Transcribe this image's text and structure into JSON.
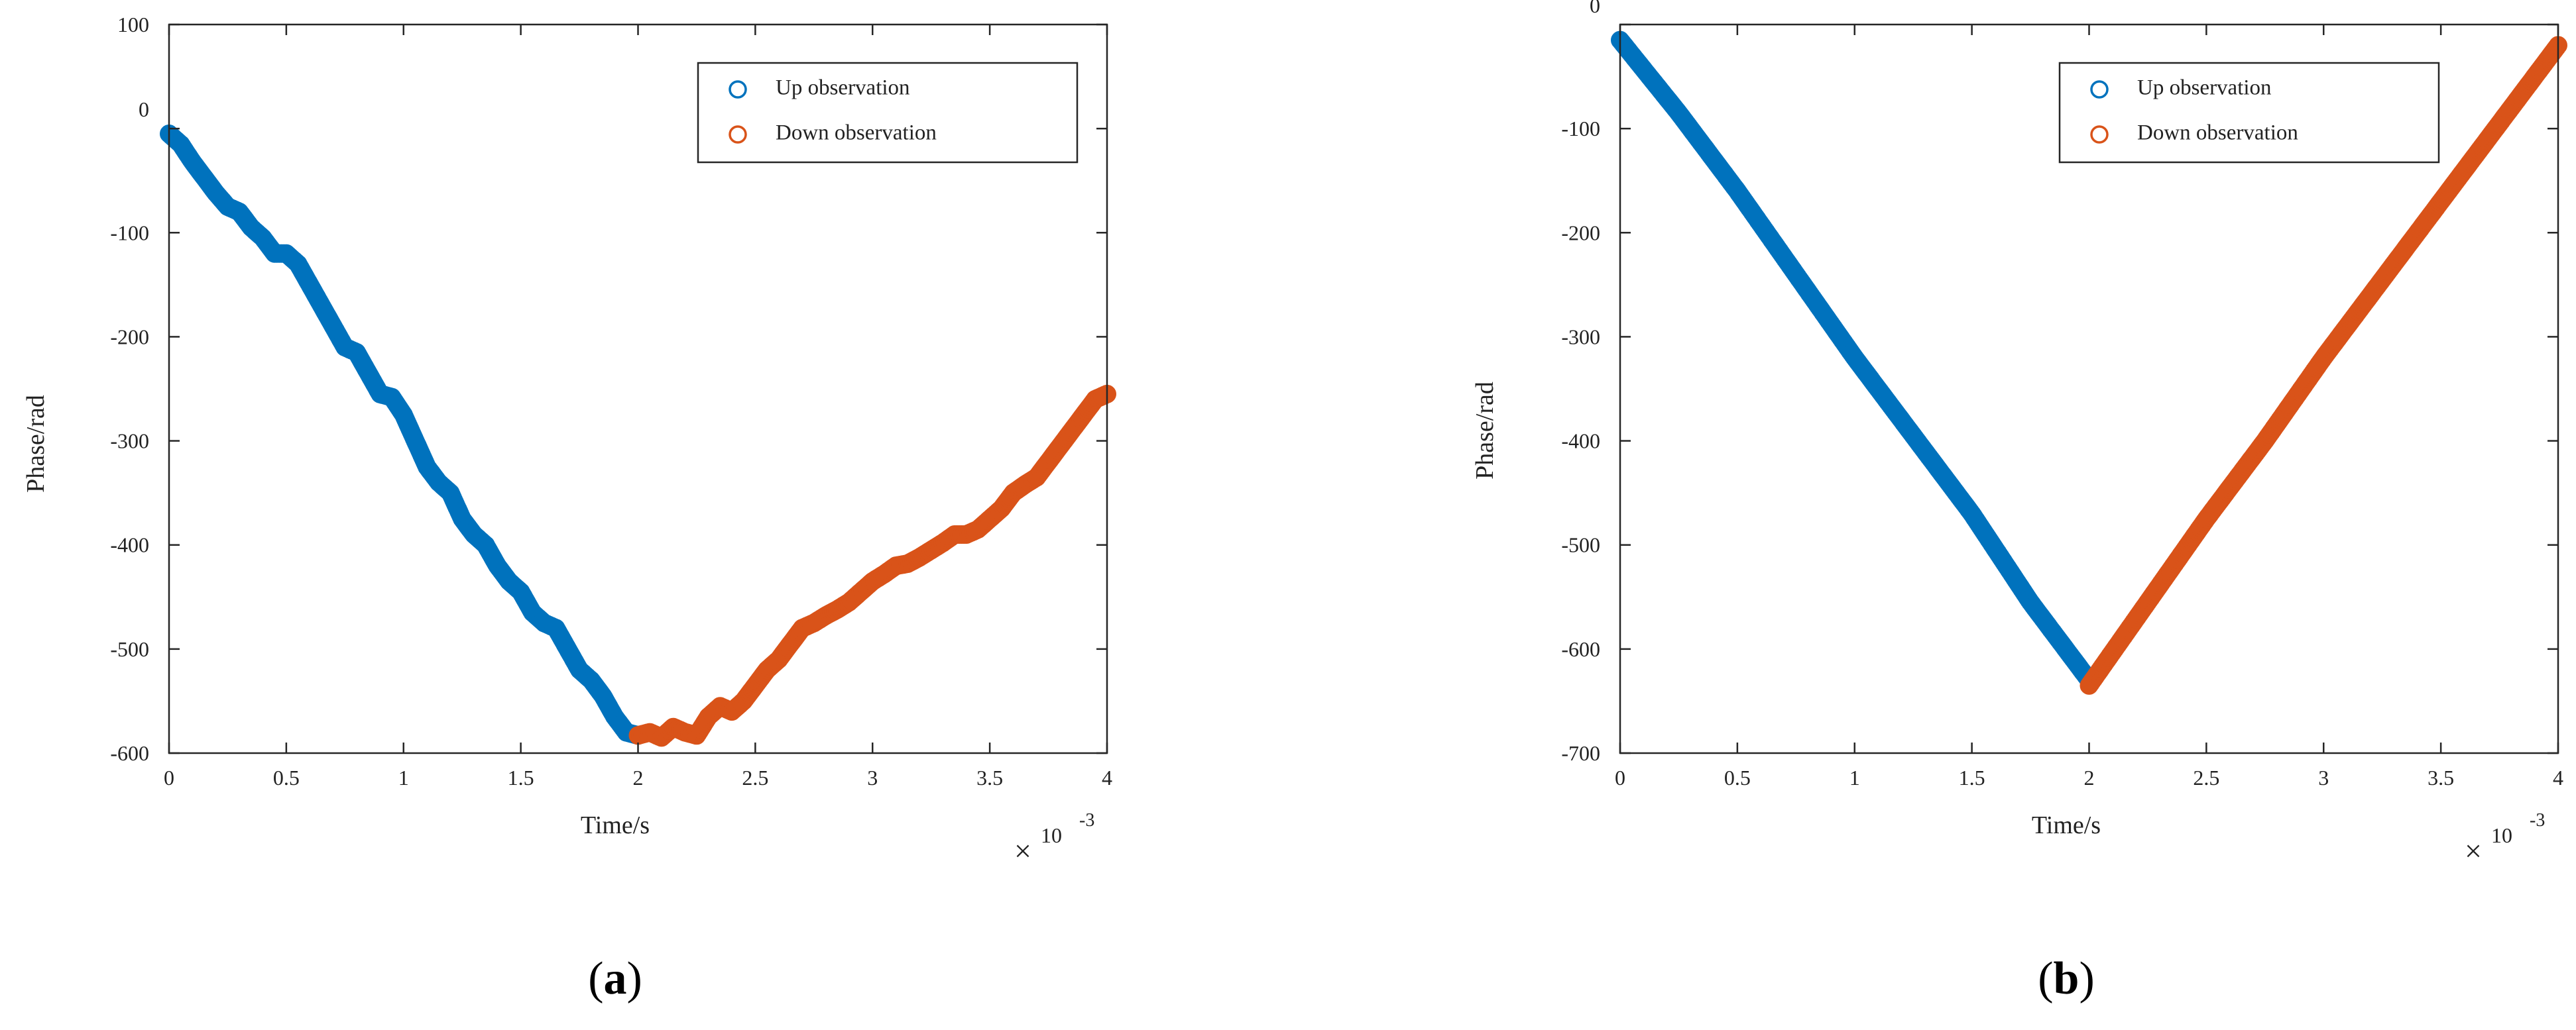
{
  "colors": {
    "up": "#0072BD",
    "down": "#D95319",
    "axis": "#262626"
  },
  "panels": [
    {
      "label_open": "(",
      "label_letter": "a",
      "label_close": ")",
      "xlabel": "Time/s",
      "ylabel": "Phase/rad",
      "x_multiplier": {
        "times": "×",
        "base": "10",
        "exponent": "-3"
      },
      "legend": [
        "Up observation",
        "Down observation"
      ]
    },
    {
      "label_open": "(",
      "label_letter": "b",
      "label_close": ")",
      "xlabel": "Time/s",
      "ylabel": "Phase/rad",
      "x_multiplier": {
        "times": "×",
        "base": "10",
        "exponent": "-3"
      },
      "legend": [
        "Up observation",
        "Down observation"
      ]
    }
  ],
  "chart_data": [
    {
      "type": "scatter",
      "title": "",
      "xlabel": "Time/s",
      "ylabel": "Phase/rad",
      "x_scale_note": "×10^-3",
      "xlim": [
        0,
        4
      ],
      "ylim": [
        -600,
        100
      ],
      "xticks": [
        "0",
        "0.5",
        "1",
        "1.5",
        "2",
        "2.5",
        "3",
        "3.5",
        "4"
      ],
      "yticks": [
        "100",
        "0",
        "-100",
        "-200",
        "-300",
        "-400",
        "-500",
        "-600"
      ],
      "grid": false,
      "legend_position": "top-right",
      "series": [
        {
          "name": "Up observation",
          "color": "#0072BD",
          "points": [
            [
              0,
              -5
            ],
            [
              0.05,
              -15
            ],
            [
              0.1,
              -32
            ],
            [
              0.15,
              -47
            ],
            [
              0.2,
              -62
            ],
            [
              0.25,
              -75
            ],
            [
              0.3,
              -80
            ],
            [
              0.35,
              -95
            ],
            [
              0.4,
              -105
            ],
            [
              0.45,
              -120
            ],
            [
              0.5,
              -120
            ],
            [
              0.55,
              -130
            ],
            [
              0.6,
              -150
            ],
            [
              0.65,
              -170
            ],
            [
              0.7,
              -190
            ],
            [
              0.75,
              -210
            ],
            [
              0.8,
              -215
            ],
            [
              0.85,
              -235
            ],
            [
              0.9,
              -255
            ],
            [
              0.95,
              -258
            ],
            [
              1.0,
              -275
            ],
            [
              1.05,
              -300
            ],
            [
              1.1,
              -325
            ],
            [
              1.15,
              -340
            ],
            [
              1.2,
              -350
            ],
            [
              1.25,
              -375
            ],
            [
              1.3,
              -390
            ],
            [
              1.35,
              -400
            ],
            [
              1.4,
              -420
            ],
            [
              1.45,
              -435
            ],
            [
              1.5,
              -445
            ],
            [
              1.55,
              -465
            ],
            [
              1.6,
              -475
            ],
            [
              1.65,
              -480
            ],
            [
              1.7,
              -500
            ],
            [
              1.75,
              -520
            ],
            [
              1.8,
              -530
            ],
            [
              1.85,
              -545
            ],
            [
              1.9,
              -565
            ],
            [
              1.95,
              -580
            ],
            [
              2.0,
              -583
            ]
          ]
        },
        {
          "name": "Down observation",
          "color": "#D95319",
          "points": [
            [
              2.0,
              -583
            ],
            [
              2.05,
              -580
            ],
            [
              2.1,
              -585
            ],
            [
              2.15,
              -575
            ],
            [
              2.2,
              -580
            ],
            [
              2.25,
              -583
            ],
            [
              2.3,
              -565
            ],
            [
              2.35,
              -555
            ],
            [
              2.4,
              -560
            ],
            [
              2.45,
              -550
            ],
            [
              2.5,
              -535
            ],
            [
              2.55,
              -520
            ],
            [
              2.6,
              -510
            ],
            [
              2.65,
              -495
            ],
            [
              2.7,
              -480
            ],
            [
              2.75,
              -475
            ],
            [
              2.8,
              -468
            ],
            [
              2.85,
              -462
            ],
            [
              2.9,
              -455
            ],
            [
              2.95,
              -445
            ],
            [
              3.0,
              -435
            ],
            [
              3.05,
              -428
            ],
            [
              3.1,
              -420
            ],
            [
              3.15,
              -418
            ],
            [
              3.2,
              -412
            ],
            [
              3.25,
              -405
            ],
            [
              3.3,
              -398
            ],
            [
              3.35,
              -390
            ],
            [
              3.4,
              -390
            ],
            [
              3.45,
              -385
            ],
            [
              3.5,
              -375
            ],
            [
              3.55,
              -365
            ],
            [
              3.6,
              -350
            ],
            [
              3.65,
              -342
            ],
            [
              3.7,
              -335
            ],
            [
              3.75,
              -320
            ],
            [
              3.8,
              -305
            ],
            [
              3.85,
              -290
            ],
            [
              3.9,
              -275
            ],
            [
              3.95,
              -260
            ],
            [
              4.0,
              -255
            ]
          ]
        }
      ]
    },
    {
      "type": "scatter",
      "title": "",
      "xlabel": "Time/s",
      "ylabel": "Phase/rad",
      "x_scale_note": "×10^-3",
      "xlim": [
        0,
        4
      ],
      "ylim": [
        -700,
        0
      ],
      "xticks": [
        "0",
        "0.5",
        "1",
        "1.5",
        "2",
        "2.5",
        "3",
        "3.5",
        "4"
      ],
      "yticks": [
        "0",
        "-100",
        "-200",
        "-300",
        "-400",
        "-500",
        "-600",
        "-700"
      ],
      "grid": false,
      "legend_position": "top-right",
      "series": [
        {
          "name": "Up observation",
          "color": "#0072BD",
          "points": [
            [
              0,
              -15
            ],
            [
              0.25,
              -85
            ],
            [
              0.5,
              -160
            ],
            [
              0.75,
              -240
            ],
            [
              1.0,
              -320
            ],
            [
              1.25,
              -395
            ],
            [
              1.5,
              -470
            ],
            [
              1.75,
              -555
            ],
            [
              2.0,
              -630
            ]
          ]
        },
        {
          "name": "Down observation",
          "color": "#D95319",
          "points": [
            [
              2.0,
              -635
            ],
            [
              2.25,
              -555
            ],
            [
              2.5,
              -475
            ],
            [
              2.75,
              -400
            ],
            [
              3.0,
              -320
            ],
            [
              3.25,
              -245
            ],
            [
              3.5,
              -170
            ],
            [
              3.75,
              -95
            ],
            [
              4.0,
              -20
            ]
          ]
        }
      ]
    }
  ]
}
